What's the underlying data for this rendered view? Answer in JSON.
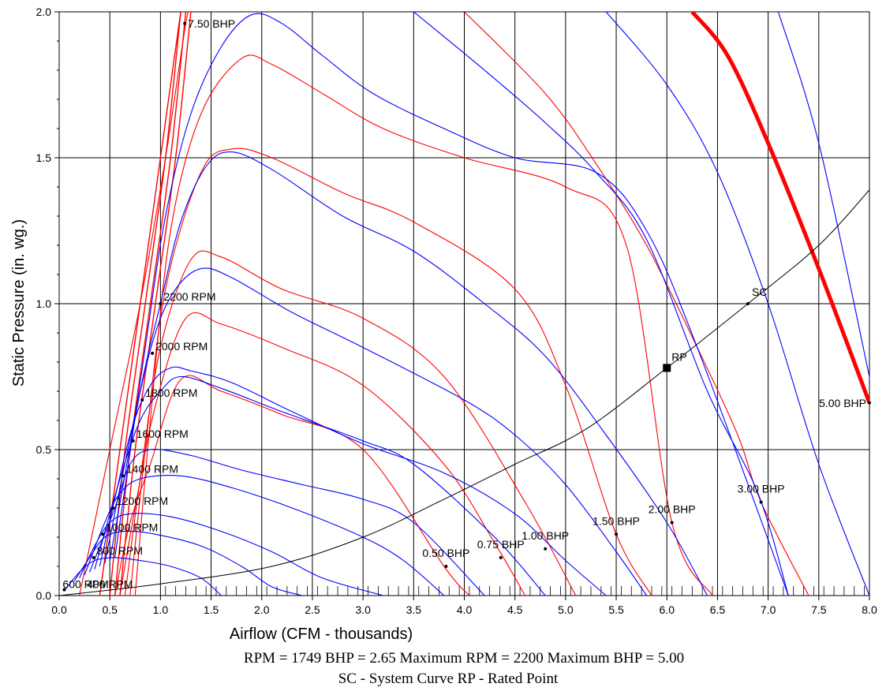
{
  "chart_data": {
    "type": "line",
    "xlabel": "Airflow (CFM - thousands)",
    "ylabel": "Static Pressure (in. wg.)",
    "xlim": [
      0,
      8
    ],
    "ylim": [
      0,
      2
    ],
    "xticks": [
      "0.0",
      "0.5",
      "1.0",
      "1.5",
      "2.0",
      "2.5",
      "3.0",
      "3.5",
      "4.0",
      "4.5",
      "5.0",
      "5.5",
      "6.0",
      "6.5",
      "7.0",
      "7.5",
      "8.0"
    ],
    "yticks": [
      "0.0",
      "0.5",
      "1.0",
      "1.5",
      "2.0"
    ],
    "grid": "on",
    "colors": {
      "rpm_curve": "#0000ff",
      "bhp_curve": "#ff0000",
      "max_bhp_curve": "#ff0000",
      "system_curve": "#000000",
      "grid": "#000000"
    },
    "rpm_curves": [
      {
        "label": "600 RPM",
        "label_at": [
          0.05,
          0.02
        ],
        "points": [
          [
            0.06,
            0.02
          ],
          [
            0.2,
            0.08
          ],
          [
            0.35,
            0.12
          ],
          [
            0.55,
            0.13
          ],
          [
            0.8,
            0.12
          ],
          [
            1.1,
            0.1
          ],
          [
            1.4,
            0.06
          ],
          [
            1.6,
            0.0
          ]
        ]
      },
      {
        "label": "800 RPM",
        "label_at": [
          0.34,
          0.13
        ],
        "points": [
          [
            0.15,
            0.05
          ],
          [
            0.3,
            0.13
          ],
          [
            0.45,
            0.2
          ],
          [
            0.65,
            0.22
          ],
          [
            0.95,
            0.21
          ],
          [
            1.4,
            0.17
          ],
          [
            1.8,
            0.1
          ],
          [
            2.1,
            0.03
          ],
          [
            2.4,
            0.0
          ]
        ]
      },
      {
        "label": "1000 RPM",
        "label_at": [
          0.43,
          0.21
        ],
        "points": [
          [
            0.2,
            0.06
          ],
          [
            0.35,
            0.17
          ],
          [
            0.5,
            0.25
          ],
          [
            0.7,
            0.28
          ],
          [
            1.1,
            0.27
          ],
          [
            1.6,
            0.22
          ],
          [
            2.1,
            0.15
          ],
          [
            2.6,
            0.06
          ],
          [
            3.2,
            0.0
          ]
        ]
      },
      {
        "label": "1200 RPM",
        "label_at": [
          0.53,
          0.3
        ],
        "points": [
          [
            0.25,
            0.07
          ],
          [
            0.45,
            0.25
          ],
          [
            0.6,
            0.35
          ],
          [
            0.8,
            0.4
          ],
          [
            1.2,
            0.41
          ],
          [
            1.7,
            0.37
          ],
          [
            2.3,
            0.3
          ],
          [
            3.0,
            0.2
          ],
          [
            3.4,
            0.12
          ],
          [
            3.8,
            0.0
          ]
        ]
      },
      {
        "label": "1400 RPM",
        "label_at": [
          0.63,
          0.41
        ],
        "points": [
          [
            0.3,
            0.08
          ],
          [
            0.55,
            0.3
          ],
          [
            0.7,
            0.45
          ],
          [
            0.9,
            0.5
          ],
          [
            1.3,
            0.48
          ],
          [
            1.8,
            0.43
          ],
          [
            2.4,
            0.38
          ],
          [
            3.0,
            0.33
          ],
          [
            3.5,
            0.25
          ],
          [
            4.2,
            0.0
          ]
        ]
      },
      {
        "label": "1600 RPM",
        "label_at": [
          0.73,
          0.53
        ],
        "points": [
          [
            0.35,
            0.09
          ],
          [
            0.6,
            0.4
          ],
          [
            0.8,
            0.6
          ],
          [
            1.0,
            0.7
          ],
          [
            1.2,
            0.75
          ],
          [
            1.6,
            0.71
          ],
          [
            2.2,
            0.63
          ],
          [
            3.0,
            0.53
          ],
          [
            3.5,
            0.45
          ],
          [
            4.3,
            0.2
          ],
          [
            4.8,
            0.0
          ]
        ]
      },
      {
        "label": "1800 RPM",
        "label_at": [
          0.82,
          0.67
        ],
        "points": [
          [
            0.4,
            0.1
          ],
          [
            0.7,
            0.55
          ],
          [
            0.9,
            0.72
          ],
          [
            1.1,
            0.78
          ],
          [
            1.3,
            0.77
          ],
          [
            1.7,
            0.73
          ],
          [
            2.3,
            0.63
          ],
          [
            3.0,
            0.52
          ],
          [
            3.8,
            0.42
          ],
          [
            4.5,
            0.28
          ],
          [
            5.0,
            0.12
          ],
          [
            5.4,
            0.0
          ]
        ]
      },
      {
        "label": "2000 RPM",
        "label_at": [
          0.92,
          0.83
        ],
        "points": [
          [
            0.45,
            0.11
          ],
          [
            0.75,
            0.62
          ],
          [
            0.95,
            0.9
          ],
          [
            1.15,
            1.05
          ],
          [
            1.4,
            1.12
          ],
          [
            1.7,
            1.09
          ],
          [
            2.3,
            0.97
          ],
          [
            3.0,
            0.85
          ],
          [
            4.0,
            0.67
          ],
          [
            4.5,
            0.55
          ],
          [
            5.0,
            0.38
          ],
          [
            5.5,
            0.15
          ],
          [
            5.8,
            0.0
          ]
        ]
      },
      {
        "label": "2200 RPM",
        "label_at": [
          1.0,
          1.0
        ],
        "points": [
          [
            0.5,
            0.12
          ],
          [
            0.8,
            0.7
          ],
          [
            1.0,
            1.0
          ],
          [
            1.2,
            1.28
          ],
          [
            1.45,
            1.47
          ],
          [
            1.7,
            1.52
          ],
          [
            2.1,
            1.46
          ],
          [
            2.8,
            1.3
          ],
          [
            3.5,
            1.18
          ],
          [
            4.2,
            1.0
          ],
          [
            4.8,
            0.82
          ],
          [
            5.4,
            0.55
          ],
          [
            6.0,
            0.25
          ],
          [
            6.4,
            0.0
          ]
        ]
      },
      {
        "label": "",
        "label_at": null,
        "points": [
          [
            0.55,
            0.13
          ],
          [
            0.85,
            0.85
          ],
          [
            1.05,
            1.3
          ],
          [
            1.3,
            1.65
          ],
          [
            1.6,
            1.88
          ],
          [
            1.9,
            1.99
          ],
          [
            2.2,
            1.96
          ],
          [
            2.6,
            1.85
          ],
          [
            3.1,
            1.72
          ],
          [
            3.8,
            1.6
          ],
          [
            4.5,
            1.5
          ],
          [
            5.3,
            1.45
          ],
          [
            5.8,
            1.25
          ],
          [
            6.3,
            0.85
          ],
          [
            7.2,
            0.0
          ]
        ]
      },
      {
        "label": "",
        "label_at": null,
        "points": [
          [
            3.5,
            2.0
          ],
          [
            4.2,
            1.8
          ],
          [
            4.8,
            1.62
          ],
          [
            5.3,
            1.45
          ],
          [
            5.8,
            1.22
          ],
          [
            6.4,
            0.7
          ],
          [
            6.9,
            0.35
          ],
          [
            7.2,
            0.0
          ]
        ]
      },
      {
        "label": "",
        "label_at": null,
        "points": [
          [
            5.4,
            2.0
          ],
          [
            6.0,
            1.75
          ],
          [
            6.5,
            1.45
          ],
          [
            7.0,
            1.0
          ],
          [
            7.5,
            0.45
          ],
          [
            8.0,
            0.0
          ]
        ]
      },
      {
        "label": "",
        "label_at": null,
        "points": [
          [
            7.1,
            2.0
          ],
          [
            7.5,
            1.55
          ],
          [
            8.0,
            0.75
          ]
        ]
      }
    ],
    "bhp_curves": [
      {
        "label": "0.50 BHP",
        "label_at": [
          3.82,
          0.1
        ],
        "points": [
          [
            0.55,
            0.0
          ],
          [
            0.7,
            0.25
          ],
          [
            0.9,
            0.45
          ],
          [
            1.2,
            0.74
          ],
          [
            1.6,
            0.7
          ],
          [
            2.2,
            0.62
          ],
          [
            3.0,
            0.5
          ],
          [
            3.8,
            0.1
          ],
          [
            4.05,
            0.0
          ]
        ]
      },
      {
        "label": "0.75 BHP",
        "label_at": [
          4.36,
          0.13
        ],
        "points": [
          [
            0.6,
            0.0
          ],
          [
            0.75,
            0.3
          ],
          [
            0.95,
            0.65
          ],
          [
            1.25,
            0.95
          ],
          [
            1.6,
            0.93
          ],
          [
            2.2,
            0.85
          ],
          [
            3.0,
            0.72
          ],
          [
            3.8,
            0.45
          ],
          [
            4.3,
            0.18
          ],
          [
            4.6,
            0.0
          ]
        ]
      },
      {
        "label": "1.00 BHP",
        "label_at": [
          4.8,
          0.16
        ],
        "points": [
          [
            0.65,
            0.0
          ],
          [
            0.8,
            0.4
          ],
          [
            1.0,
            0.85
          ],
          [
            1.3,
            1.15
          ],
          [
            1.6,
            1.16
          ],
          [
            2.2,
            1.05
          ],
          [
            3.0,
            0.95
          ],
          [
            3.8,
            0.75
          ],
          [
            4.6,
            0.32
          ],
          [
            5.1,
            0.0
          ]
        ]
      },
      {
        "label": "1.50 BHP",
        "label_at": [
          5.5,
          0.21
        ],
        "points": [
          [
            0.7,
            0.0
          ],
          [
            0.85,
            0.5
          ],
          [
            1.05,
            1.05
          ],
          [
            1.4,
            1.45
          ],
          [
            1.7,
            1.53
          ],
          [
            2.1,
            1.5
          ],
          [
            2.8,
            1.38
          ],
          [
            3.5,
            1.28
          ],
          [
            4.5,
            1.05
          ],
          [
            5.0,
            0.72
          ],
          [
            5.5,
            0.21
          ],
          [
            5.85,
            0.0
          ]
        ]
      },
      {
        "label": "2.00 BHP",
        "label_at": [
          6.05,
          0.25
        ],
        "points": [
          [
            0.75,
            0.0
          ],
          [
            0.9,
            0.6
          ],
          [
            1.1,
            1.25
          ],
          [
            1.4,
            1.65
          ],
          [
            1.8,
            1.84
          ],
          [
            2.1,
            1.82
          ],
          [
            2.6,
            1.72
          ],
          [
            3.2,
            1.6
          ],
          [
            4.0,
            1.5
          ],
          [
            5.0,
            1.4
          ],
          [
            5.6,
            1.2
          ],
          [
            6.05,
            0.25
          ],
          [
            6.45,
            0.0
          ]
        ]
      },
      {
        "label": "3.00 BHP",
        "label_at": [
          6.93,
          0.32
        ],
        "points": [
          [
            4.0,
            2.0
          ],
          [
            4.8,
            1.72
          ],
          [
            5.3,
            1.48
          ],
          [
            5.8,
            1.2
          ],
          [
            6.3,
            0.85
          ],
          [
            6.7,
            0.55
          ],
          [
            6.93,
            0.32
          ],
          [
            7.4,
            0.0
          ]
        ]
      },
      {
        "label": "7.50 BHP",
        "label_at": [
          1.24,
          1.96
        ],
        "points": [
          [
            0.2,
            0.0
          ],
          [
            0.5,
            0.5
          ],
          [
            0.8,
            1.0
          ],
          [
            1.05,
            1.5
          ],
          [
            1.25,
            1.96
          ],
          [
            1.3,
            2.0
          ]
        ]
      }
    ],
    "max_bhp_curve": {
      "label": "5.00 BHP",
      "label_at": [
        8.0,
        0.66
      ],
      "points": [
        [
          6.25,
          2.0
        ],
        [
          6.6,
          1.85
        ],
        [
          7.0,
          1.55
        ],
        [
          7.5,
          1.12
        ],
        [
          8.0,
          0.66
        ]
      ]
    },
    "extra_left_lines": [
      [
        [
          0.6,
          0.0
        ],
        [
          0.75,
          0.5
        ],
        [
          0.95,
          1.0
        ],
        [
          1.15,
          1.5
        ],
        [
          1.3,
          2.0
        ]
      ],
      [
        [
          0.55,
          0.0
        ],
        [
          0.7,
          0.5
        ],
        [
          0.9,
          1.0
        ],
        [
          1.1,
          1.5
        ],
        [
          1.25,
          2.0
        ]
      ],
      [
        [
          0.5,
          0.0
        ],
        [
          0.65,
          0.5
        ],
        [
          0.85,
          1.0
        ],
        [
          1.05,
          1.5
        ],
        [
          1.2,
          2.0
        ]
      ],
      [
        [
          0.4,
          0.0
        ],
        [
          0.6,
          0.5
        ],
        [
          0.8,
          1.0
        ],
        [
          1.0,
          1.5
        ],
        [
          1.2,
          2.0
        ]
      ]
    ],
    "system_curve": {
      "label": "SC",
      "label_at": [
        6.8,
        1.0
      ],
      "points": [
        [
          0.0,
          0.0
        ],
        [
          1.0,
          0.04
        ],
        [
          2.1,
          0.1
        ],
        [
          3.0,
          0.2
        ],
        [
          3.8,
          0.33
        ],
        [
          4.5,
          0.45
        ],
        [
          5.2,
          0.57
        ],
        [
          6.0,
          0.78
        ],
        [
          6.8,
          1.0
        ],
        [
          7.5,
          1.2
        ],
        [
          8.0,
          1.39
        ]
      ]
    },
    "rated_point": {
      "label": "RP",
      "x": 6.0,
      "y": 0.78
    },
    "annotations": {
      "rpm_overlap_label": "600 RPM",
      "rpm_overlap_label2": "400 RPM"
    },
    "footer_line1": "RPM = 1749  BHP = 2.65  Maximum RPM = 2200  Maximum BHP = 5.00",
    "footer_line2": "SC - System Curve  RP - Rated Point"
  }
}
